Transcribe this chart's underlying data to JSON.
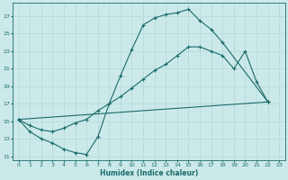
{
  "xlabel": "Humidex (Indice chaleur)",
  "xlim": [
    -0.5,
    23.5
  ],
  "ylim": [
    10.5,
    28.5
  ],
  "xticks": [
    0,
    1,
    2,
    3,
    4,
    5,
    6,
    7,
    8,
    9,
    10,
    11,
    12,
    13,
    14,
    15,
    16,
    17,
    18,
    19,
    20,
    21,
    22,
    23
  ],
  "yticks": [
    11,
    13,
    15,
    17,
    19,
    21,
    23,
    25,
    27
  ],
  "bg_color": "#cce9e9",
  "line_color": "#1a6b6b",
  "grid_color": "#b0d8d8",
  "line1_x": [
    0,
    1,
    2,
    3,
    4,
    5,
    6,
    7,
    8,
    9,
    10,
    11,
    12,
    13,
    14,
    15,
    16,
    17,
    18,
    22
  ],
  "line1_y": [
    15.2,
    13.8,
    13.0,
    12.5,
    11.8,
    11.4,
    11.2,
    13.2,
    17.0,
    20.2,
    23.2,
    26.0,
    26.8,
    27.2,
    27.4,
    27.8,
    26.5,
    25.5,
    24.0,
    17.2
  ],
  "line2_x": [
    0,
    22
  ],
  "line2_y": [
    15.2,
    17.2
  ],
  "line3_x": [
    0,
    1,
    2,
    3,
    4,
    5,
    6,
    7,
    8,
    9,
    10,
    11,
    12,
    13,
    14,
    15,
    16,
    17,
    18,
    19,
    20,
    21,
    22
  ],
  "line3_y": [
    15.2,
    14.5,
    14.0,
    13.8,
    14.2,
    14.8,
    15.2,
    16.2,
    17.0,
    17.8,
    18.8,
    19.8,
    20.8,
    21.5,
    22.5,
    23.5,
    23.5,
    23.0,
    22.5,
    21.0,
    23.0,
    19.5,
    17.2
  ]
}
